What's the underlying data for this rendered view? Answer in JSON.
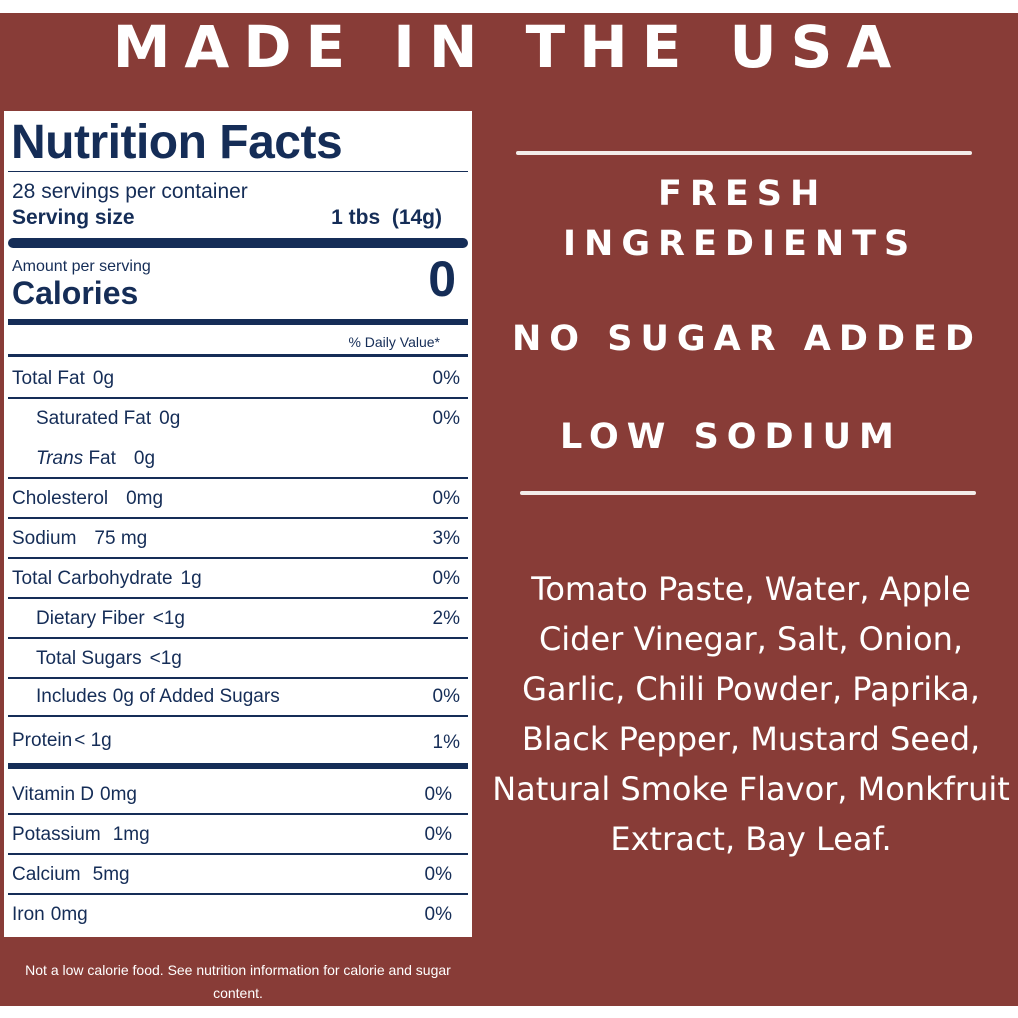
{
  "headline": "MADE IN THE USA",
  "nutrition": {
    "title": "Nutrition Facts",
    "servings_per_container": "28 servings per container",
    "serving_size_label": "Serving size",
    "serving_size_value": "1 tbs  (14g)",
    "amount_per_serving": "Amount per serving",
    "calories_label": "Calories",
    "calories_value": "0",
    "daily_value_header": "% Daily Value*",
    "rows": [
      {
        "name": "Total Fat",
        "amount": "0g",
        "dv": "0%"
      },
      {
        "name": "Saturated Fat",
        "amount": "0g",
        "dv": "0%"
      },
      {
        "name": "Trans",
        "name_suffix": "Fat",
        "amount": "0g",
        "dv": ""
      },
      {
        "name": "Cholesterol",
        "amount": "0mg",
        "dv": "0%"
      },
      {
        "name": "Sodium",
        "amount": "75 mg",
        "dv": "3%"
      },
      {
        "name": "Total Carbohydrate",
        "amount": "1g",
        "dv": "0%"
      },
      {
        "name": "Dietary Fiber",
        "amount": "<1g",
        "dv": "2%"
      },
      {
        "name": "Total Sugars",
        "amount": "<1g",
        "dv": ""
      },
      {
        "name": "Includes",
        "amount": "0g of Added Sugars",
        "dv": "0%"
      },
      {
        "name": "Protein",
        "amount": "< 1g",
        "dv": "1%"
      },
      {
        "name": "Vitamin D",
        "amount": "0mg",
        "dv": "0%"
      },
      {
        "name": "Potassium",
        "amount": "1mg",
        "dv": "0%"
      },
      {
        "name": "Calcium",
        "amount": "5mg",
        "dv": "0%"
      },
      {
        "name": "Iron",
        "amount": "0mg",
        "dv": "0%"
      }
    ],
    "footnote": "Not a low calorie food. See nutrition information for calorie and sugar content."
  },
  "claims": {
    "fresh_line1": "FRESH",
    "fresh_line2": "INGREDIENTS",
    "no_sugar": "NO SUGAR ADDED",
    "low_sodium": "LOW SODIUM"
  },
  "ingredients": "Tomato Paste, Water, Apple Cider Vinegar, Salt, Onion, Garlic, Chili Powder, Paprika, Black Pepper, Mustard Seed, Natural Smoke Flavor, Monkfruit Extract, Bay Leaf.",
  "colors": {
    "background": "#883c37",
    "label_ink": "#152d57",
    "text": "#ffffff"
  }
}
